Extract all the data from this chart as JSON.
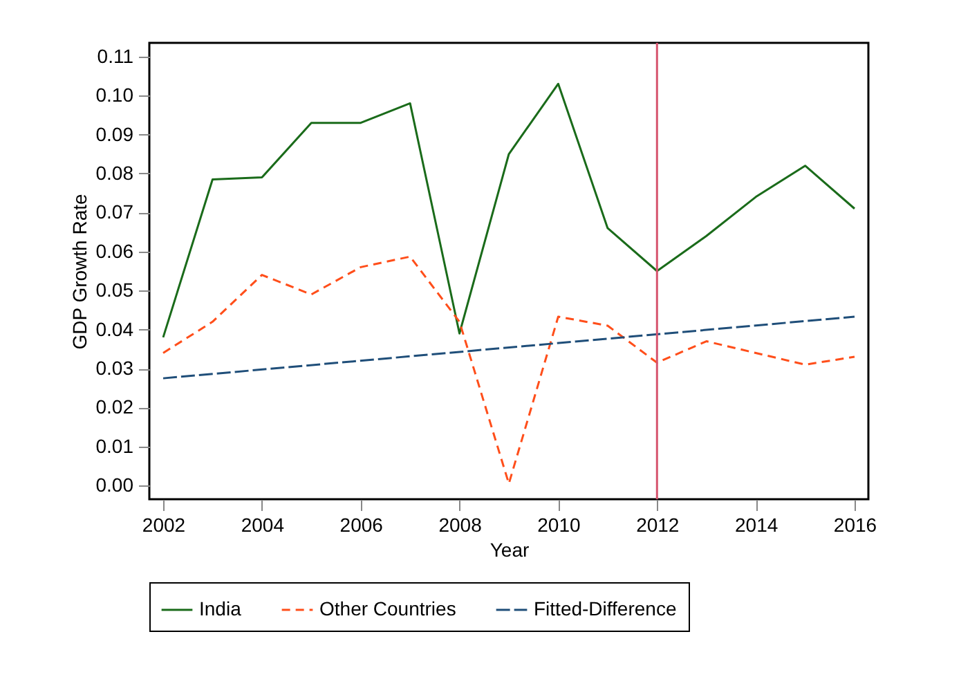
{
  "chart_data": {
    "type": "line",
    "xlabel": "Year",
    "ylabel": "GDP Growth Rate",
    "x": [
      2002,
      2003,
      2004,
      2005,
      2006,
      2007,
      2008,
      2009,
      2010,
      2011,
      2012,
      2013,
      2014,
      2015,
      2016
    ],
    "series": [
      {
        "name": "India",
        "color": "#1a6b1a",
        "line_style": "solid",
        "values": [
          0.038,
          0.0785,
          0.079,
          0.093,
          0.093,
          0.098,
          0.039,
          0.085,
          0.103,
          0.066,
          0.055,
          0.064,
          0.074,
          0.082,
          0.071
        ]
      },
      {
        "name": "Other Countries",
        "color": "#ff4e1a",
        "line_style": "dashed",
        "values": [
          0.034,
          0.042,
          0.054,
          0.049,
          0.056,
          0.0587,
          0.042,
          0.0005,
          0.0433,
          0.041,
          0.0315,
          0.037,
          0.034,
          0.031,
          0.033
        ]
      },
      {
        "name": "Fitted-Difference",
        "color": "#1f4e79",
        "line_style": "dashed",
        "x": [
          2002,
          2016
        ],
        "values": [
          0.0275,
          0.0433
        ]
      }
    ],
    "xlim": [
      2001.72,
      2016.28
    ],
    "xticks": [
      2002,
      2004,
      2006,
      2008,
      2010,
      2012,
      2014,
      2016
    ],
    "ylim": [
      -0.0035,
      0.1135
    ],
    "yticks": [
      {
        "value": 0,
        "label": "0.00"
      },
      0.01,
      0.02,
      0.03,
      0.04,
      0.05,
      0.06,
      0.07,
      0.08,
      0.09,
      {
        "value": 0.1,
        "label": "0.10"
      },
      0.11
    ],
    "ref_lines": [
      {
        "axis": "x",
        "value": 2012,
        "color": "#d6546e"
      }
    ],
    "grid": false,
    "legend": "bottom",
    "marker": "none"
  }
}
